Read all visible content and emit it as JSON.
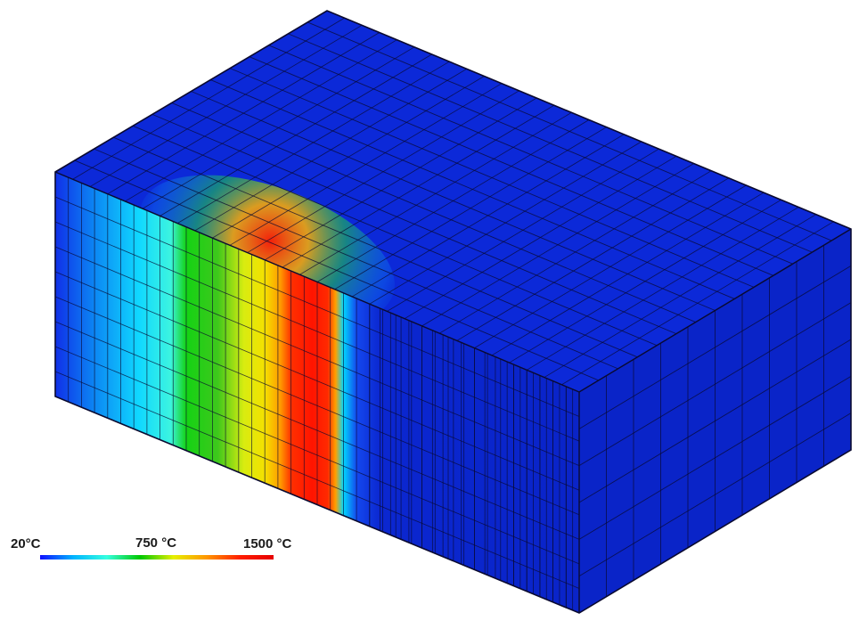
{
  "legend": {
    "min_label": "20°C",
    "mid_label": "750 °C",
    "max_label": "1500 °C",
    "colors": [
      "#1010ff",
      "#00b4ff",
      "#35ffe0",
      "#00c800",
      "#e6f000",
      "#ff9600",
      "#ff1e00",
      "#e60000"
    ]
  },
  "block": {
    "top_color": "#0c29d8",
    "right_color": "#0a24c8",
    "front_base_color": "#0b27d0",
    "edge_color": "#0a0a30",
    "hot_zone_colors": {
      "cold": "#0e2ee0",
      "cyan": "#00e5ff",
      "green": "#00c800",
      "yellow": "#f0e800",
      "orange": "#ff8a00",
      "red": "#ff1800"
    }
  }
}
